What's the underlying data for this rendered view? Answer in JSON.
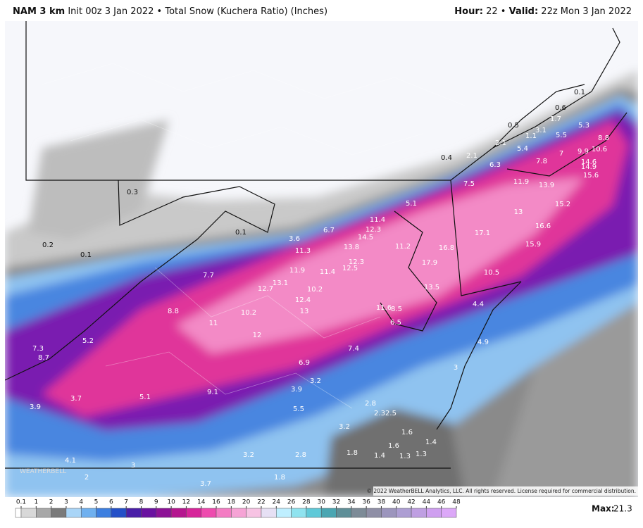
{
  "header": {
    "model": "NAM 3 km",
    "init": "Init 00z 3 Jan 2022",
    "separator": "•",
    "product": "Total Snow (Kuchera Ratio) (Inches)",
    "hour_label": "Hour:",
    "hour": "22",
    "valid_label": "Valid:",
    "valid": "22z Mon 3 Jan 2022"
  },
  "map": {
    "labels": [
      0.3,
      0.2,
      0.1,
      0.1,
      3.6,
      6.7,
      11.3,
      11.9,
      11.4,
      12.5,
      13.8,
      14.5,
      12.3,
      11.4,
      12.3,
      7.7,
      12.7,
      13.1,
      10.2,
      12.4,
      13.0,
      8.8,
      10.2,
      11.0,
      12.0,
      7.4,
      6.9,
      7.3,
      8.7,
      5.2,
      3.2,
      3.9,
      9.1,
      5.1,
      3.7,
      3.9,
      5.5,
      2.8,
      2.3,
      2.5,
      3.2,
      1.6,
      1.4,
      1.6,
      1.8,
      1.4,
      1.3,
      1.3,
      3.2,
      2.8,
      4.1,
      3.0,
      2.0,
      1.8,
      3.7,
      16.8,
      17.9,
      13.5,
      11.6,
      8.5,
      6.5,
      4.4,
      4.9,
      3.0,
      10.5,
      17.1,
      13.0,
      16.6,
      15.9,
      15.2,
      13.9,
      11.9,
      7.5,
      7.8,
      6.3,
      0.4,
      2.1,
      2.1,
      0.5,
      1.1,
      3.1,
      5.4,
      7.0,
      9.9,
      10.6,
      8.8,
      5.5,
      5.3,
      1.7,
      0.6,
      0.1,
      14.6,
      14.9,
      15.6,
      5.1,
      11.2
    ],
    "watermark": "WEATHERBELL",
    "copyright": "© 2022 WeatherBELL Analytics, LLC. All rights reserved. License required for commercial distribution."
  },
  "legend": {
    "ticks": [
      0.1,
      1,
      2,
      3,
      4,
      5,
      6,
      7,
      8,
      9,
      10,
      12,
      14,
      16,
      18,
      20,
      22,
      24,
      26,
      28,
      30,
      32,
      34,
      36,
      38,
      40,
      42,
      44,
      46,
      48
    ]
  },
  "footer": {
    "max_label": "Max:",
    "max": 21.3
  }
}
